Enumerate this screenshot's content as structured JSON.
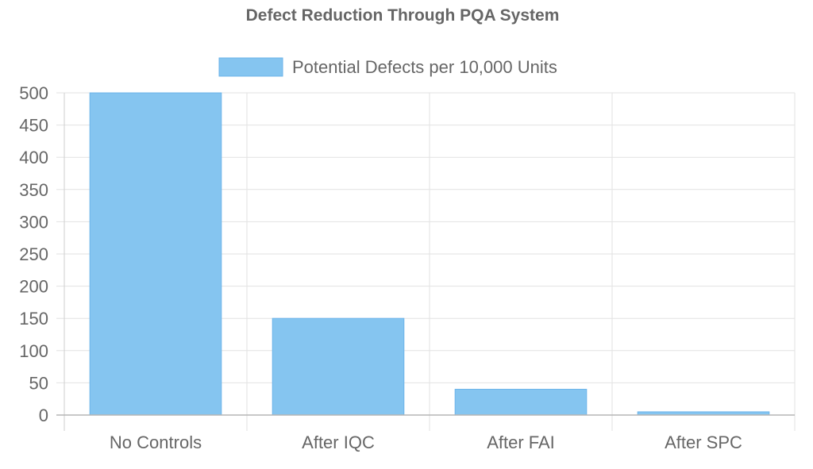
{
  "chart_data": {
    "type": "bar",
    "title": "Defect Reduction Through PQA System",
    "xlabel": "",
    "ylabel": "",
    "categories": [
      "No Controls",
      "After IQC",
      "After FAI",
      "After SPC"
    ],
    "series": [
      {
        "name": "Potential Defects per 10,000 Units",
        "values": [
          500,
          150,
          40,
          5
        ],
        "color": "#85c5f0",
        "border_color": "#6cb4ea"
      }
    ],
    "ylim": [
      0,
      500
    ],
    "yticks": [
      0,
      50,
      100,
      150,
      200,
      250,
      300,
      350,
      400,
      450,
      500
    ],
    "grid": true,
    "legend_position": "top",
    "gridline_color": "#e2e2e2",
    "text_color": "#666666"
  }
}
